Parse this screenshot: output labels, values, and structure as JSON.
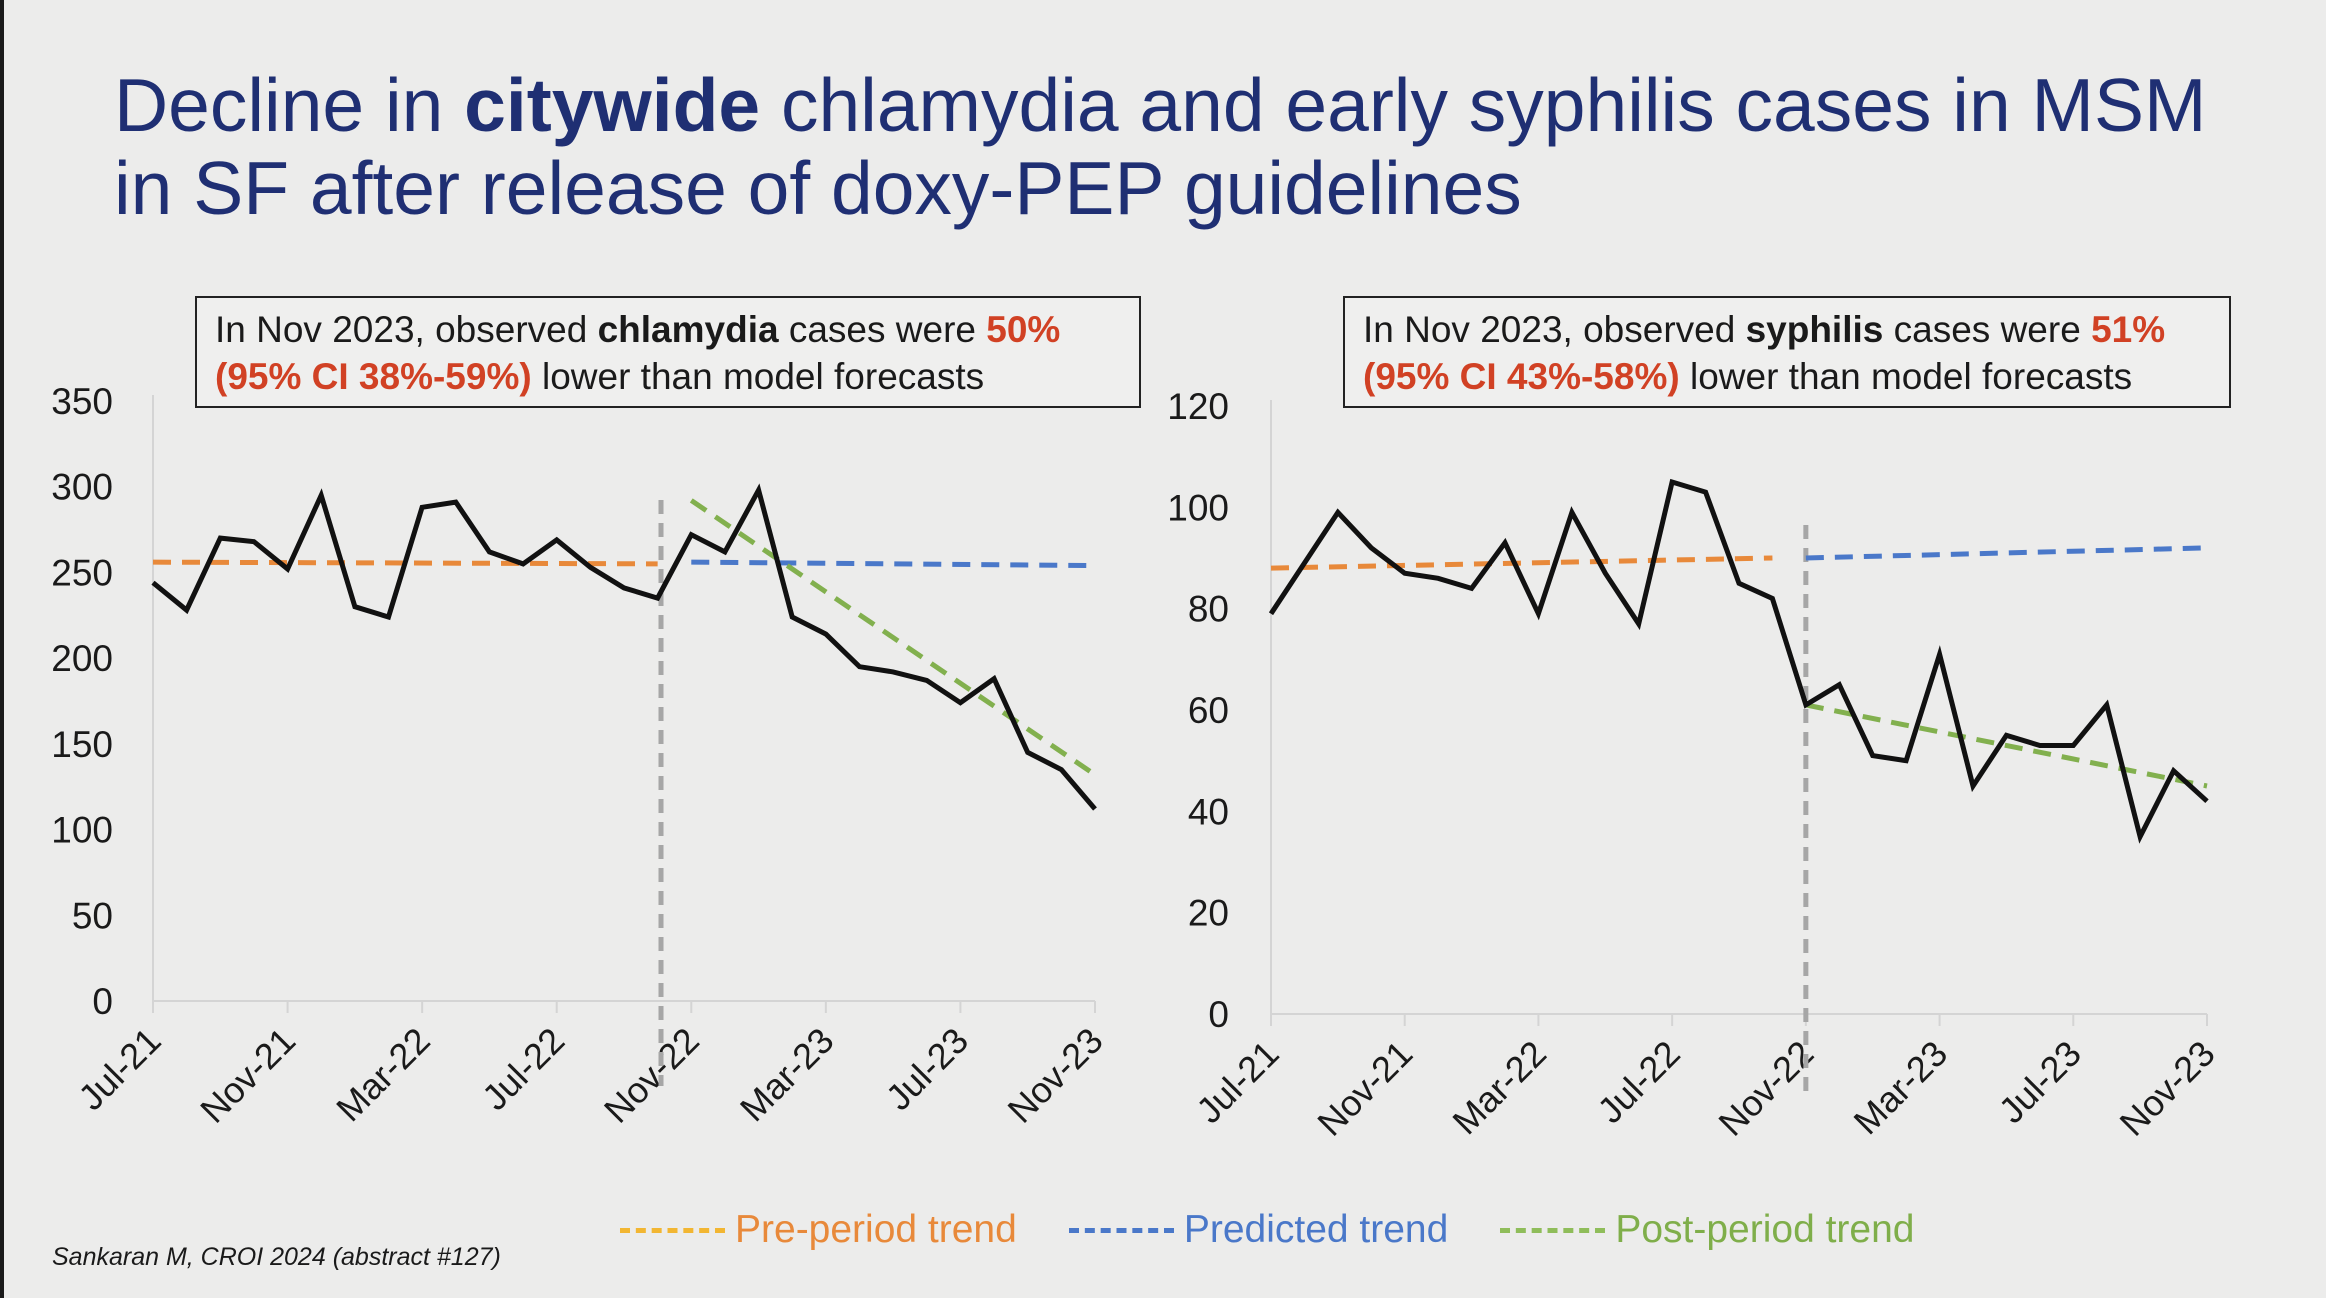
{
  "slide": {
    "title_pre": "Decline in ",
    "title_bold": "citywide",
    "title_post": " chlamydia and early syphilis cases in MSM in SF after release of doxy-PEP guidelines",
    "source": "Sankaran M, CROI 2024 (abstract #127)"
  },
  "annotations": {
    "left": {
      "t1": "In Nov 2023, observed ",
      "bold": "chlamydia",
      "t2": " cases were ",
      "pct": "50%",
      "ci": "(95% CI 38%-59%)",
      "t3": " lower than model forecasts"
    },
    "right": {
      "t1": "In Nov 2023, observed ",
      "bold": "syphilis",
      "t2": " cases were ",
      "pct": "51%",
      "ci": "(95% CI 43%-58%)",
      "t3": " lower than model forecasts"
    }
  },
  "legend": [
    {
      "label": "Pre-period trend",
      "line_color": "#f2b632",
      "text_color": "#e8893a"
    },
    {
      "label": "Predicted trend",
      "line_color": "#4a78c9",
      "text_color": "#4a78c9"
    },
    {
      "label": "Post-period trend",
      "line_color": "#8fbd5a",
      "text_color": "#7fae4a"
    }
  ],
  "colors": {
    "observed": "#111111",
    "pre": "#e8893a",
    "predicted": "#4a78c9",
    "post": "#82b04e",
    "divider": "#a6a6a6"
  },
  "chart_data": [
    {
      "type": "line",
      "x": [
        "Jul-21",
        "Aug-21",
        "Sep-21",
        "Oct-21",
        "Nov-21",
        "Dec-21",
        "Jan-22",
        "Feb-22",
        "Mar-22",
        "Apr-22",
        "May-22",
        "Jun-22",
        "Jul-22",
        "Aug-22",
        "Sep-22",
        "Oct-22",
        "Nov-22",
        "Dec-22",
        "Jan-23",
        "Feb-23",
        "Mar-23",
        "Apr-23",
        "May-23",
        "Jun-23",
        "Jul-23",
        "Aug-23",
        "Sep-23",
        "Oct-23",
        "Nov-23"
      ],
      "xticks": [
        "Jul-21",
        "Nov-21",
        "Mar-22",
        "Jul-22",
        "Nov-22",
        "Mar-23",
        "Jul-23",
        "Nov-23"
      ],
      "ylim": [
        0,
        350
      ],
      "yticks": [
        0,
        50,
        100,
        150,
        200,
        250,
        300,
        350
      ],
      "divider_at": "Oct-22",
      "series": [
        {
          "role": "observed",
          "values": [
            244,
            228,
            270,
            268,
            252,
            295,
            230,
            224,
            288,
            291,
            262,
            255,
            269,
            253,
            241,
            235,
            272,
            262,
            298,
            224,
            214,
            195,
            192,
            187,
            174,
            188,
            145,
            135,
            112
          ]
        },
        {
          "role": "pre",
          "x": [
            "Jul-21",
            "Oct-22"
          ],
          "values": [
            256,
            255
          ]
        },
        {
          "role": "predicted",
          "x": [
            "Nov-22",
            "Nov-23"
          ],
          "values": [
            256,
            254
          ]
        },
        {
          "role": "post",
          "x": [
            "Nov-22",
            "Nov-23"
          ],
          "values": [
            292,
            132
          ]
        }
      ]
    },
    {
      "type": "line",
      "x": [
        "Jul-21",
        "Aug-21",
        "Sep-21",
        "Oct-21",
        "Nov-21",
        "Dec-21",
        "Jan-22",
        "Feb-22",
        "Mar-22",
        "Apr-22",
        "May-22",
        "Jun-22",
        "Jul-22",
        "Aug-22",
        "Sep-22",
        "Oct-22",
        "Nov-22",
        "Dec-22",
        "Jan-23",
        "Feb-23",
        "Mar-23",
        "Apr-23",
        "May-23",
        "Jun-23",
        "Jul-23",
        "Aug-23",
        "Sep-23",
        "Oct-23",
        "Nov-23"
      ],
      "xticks": [
        "Jul-21",
        "Nov-21",
        "Mar-22",
        "Jul-22",
        "Nov-22",
        "Mar-23",
        "Jul-23",
        "Nov-23"
      ],
      "ylim": [
        0,
        120
      ],
      "yticks": [
        0,
        20,
        40,
        60,
        80,
        100,
        120
      ],
      "divider_at": "Nov-22",
      "series": [
        {
          "role": "observed",
          "values": [
            79,
            89,
            99,
            92,
            87,
            86,
            84,
            93,
            79,
            99,
            87,
            77,
            105,
            103,
            85,
            82,
            61,
            65,
            51,
            50,
            71,
            45,
            55,
            53,
            53,
            61,
            35,
            48,
            42
          ]
        },
        {
          "role": "pre",
          "x": [
            "Jul-21",
            "Oct-22"
          ],
          "values": [
            88,
            90
          ]
        },
        {
          "role": "predicted",
          "x": [
            "Nov-22",
            "Nov-23"
          ],
          "values": [
            90,
            92
          ]
        },
        {
          "role": "post",
          "x": [
            "Nov-22",
            "Nov-23"
          ],
          "values": [
            61,
            45
          ]
        }
      ]
    }
  ]
}
